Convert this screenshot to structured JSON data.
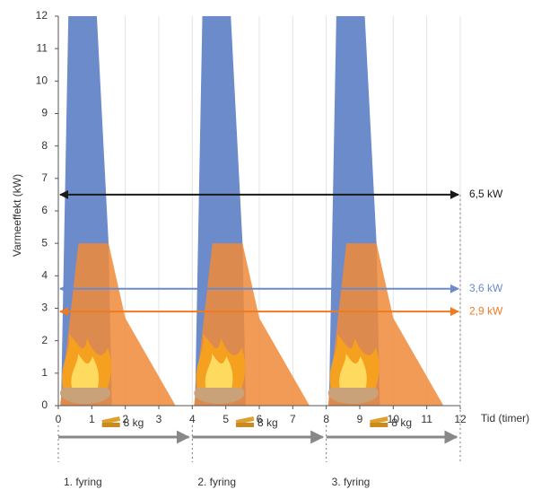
{
  "chart_data": {
    "type": "area",
    "y_label": "Varmeeffekt (kW)",
    "x_label": "Tid (timer)",
    "xlim": [
      0,
      12
    ],
    "xticks": [
      0,
      1,
      2,
      3,
      4,
      5,
      6,
      7,
      8,
      9,
      10,
      11,
      12
    ],
    "ylim": [
      0,
      12
    ],
    "yticks": [
      0,
      1,
      2,
      3,
      4,
      5,
      6,
      7,
      8,
      9,
      10,
      11,
      12
    ],
    "grid": "x",
    "series": [
      {
        "color": "#6c8bcb",
        "x": [
          0.08,
          0.3,
          1.15,
          1.5,
          1.6
        ],
        "values": [
          0,
          12,
          12,
          5,
          0
        ]
      },
      {
        "color": "#6c8bcb",
        "x": [
          4.08,
          4.3,
          5.15,
          5.5,
          5.6
        ],
        "values": [
          0,
          12,
          12,
          5,
          0
        ]
      },
      {
        "color": "#6c8bcb",
        "x": [
          8.08,
          8.3,
          9.15,
          9.5,
          9.6
        ],
        "values": [
          0,
          12,
          12,
          5,
          0
        ]
      },
      {
        "color": "#f08a38",
        "x": [
          0.05,
          0.6,
          1.5,
          2.0,
          3.5
        ],
        "values": [
          0,
          5,
          5,
          2.7,
          0
        ]
      },
      {
        "color": "#f08a38",
        "x": [
          4.05,
          4.6,
          5.5,
          6.0,
          7.5
        ],
        "values": [
          0,
          5,
          5,
          2.7,
          0
        ]
      },
      {
        "color": "#f08a38",
        "x": [
          8.05,
          8.6,
          9.5,
          10.0,
          11.5
        ],
        "values": [
          0,
          5,
          5,
          2.7,
          0
        ]
      }
    ],
    "reference_lines": [
      {
        "value": 6.5,
        "label": "6,5 kW",
        "color": "#1a1a1a"
      },
      {
        "value": 3.6,
        "label": "3,6 kW",
        "color": "#6c8bcb"
      },
      {
        "value": 2.9,
        "label": "2,9 kW",
        "color": "#ef7a22"
      }
    ],
    "firings": [
      {
        "start": 0,
        "end": 4,
        "load": "8 kg",
        "label": "1. fyring"
      },
      {
        "start": 4,
        "end": 8,
        "load": "8 kg",
        "label": "2. fyring"
      },
      {
        "start": 8,
        "end": 12,
        "load": "8 kg",
        "label": "3. fyring"
      }
    ]
  }
}
